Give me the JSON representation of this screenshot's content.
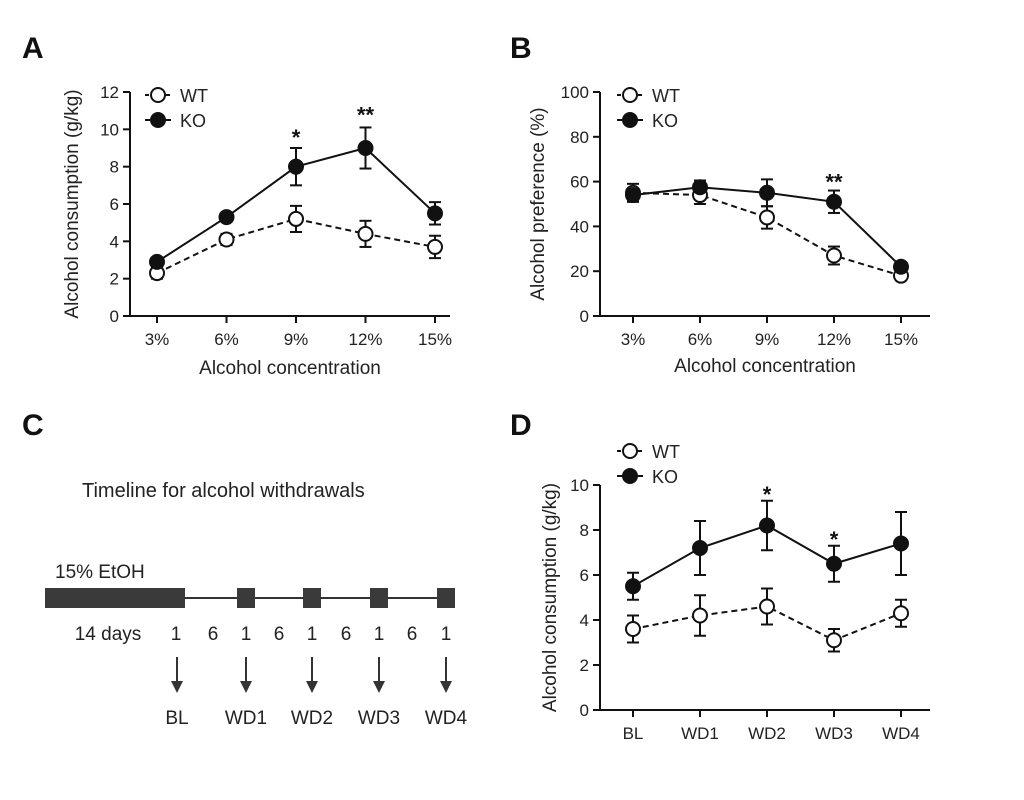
{
  "chart_data": [
    {
      "panel": "A",
      "type": "line",
      "categories": [
        "3%",
        "6%",
        "9%",
        "12%",
        "15%"
      ],
      "xlabel": "Alcohol concentration",
      "ylabel": "Alcohol consumption (g/kg)",
      "ylim": [
        0,
        12
      ],
      "yticks": [
        0,
        2,
        4,
        6,
        8,
        10,
        12
      ],
      "legend_position": "top-left",
      "series": [
        {
          "name": "WT",
          "marker": "open-circle",
          "line": "dashed",
          "values": [
            2.3,
            4.1,
            5.2,
            4.4,
            3.7
          ],
          "errors": [
            0.3,
            0.3,
            0.7,
            0.7,
            0.6
          ]
        },
        {
          "name": "KO",
          "marker": "filled-circle",
          "line": "solid",
          "values": [
            2.9,
            5.3,
            8.0,
            9.0,
            5.5
          ],
          "errors": [
            0.2,
            0.2,
            1.0,
            1.1,
            0.6
          ]
        }
      ],
      "annotations": [
        {
          "category": "9%",
          "text": "*",
          "y": 9.6
        },
        {
          "category": "12%",
          "text": "**",
          "y": 10.8
        }
      ]
    },
    {
      "panel": "B",
      "type": "line",
      "categories": [
        "3%",
        "6%",
        "9%",
        "12%",
        "15%"
      ],
      "xlabel": "Alcohol concentration",
      "ylabel": "Alcohol preference (%)",
      "ylim": [
        0,
        100
      ],
      "yticks": [
        0,
        20,
        40,
        60,
        80,
        100
      ],
      "legend_position": "top-left",
      "series": [
        {
          "name": "WT",
          "marker": "open-circle",
          "line": "dashed",
          "values": [
            55,
            54,
            44,
            27,
            18
          ],
          "errors": [
            4,
            4,
            5,
            4,
            2
          ]
        },
        {
          "name": "KO",
          "marker": "filled-circle",
          "line": "solid",
          "values": [
            54,
            57.5,
            55,
            51,
            22
          ],
          "errors": [
            3,
            3,
            6,
            5,
            2
          ]
        }
      ],
      "annotations": [
        {
          "category": "12%",
          "text": "**",
          "y": 60
        }
      ]
    },
    {
      "panel": "D",
      "type": "line",
      "categories": [
        "BL",
        "WD1",
        "WD2",
        "WD3",
        "WD4"
      ],
      "xlabel": "",
      "ylabel": "Alcohol consumption (g/kg)",
      "ylim": [
        0,
        10
      ],
      "yticks": [
        0,
        2,
        4,
        6,
        8,
        10
      ],
      "legend_position": "top-left",
      "series": [
        {
          "name": "WT",
          "marker": "open-circle",
          "line": "dashed",
          "values": [
            3.6,
            4.2,
            4.6,
            3.1,
            4.3
          ],
          "errors": [
            0.6,
            0.9,
            0.8,
            0.5,
            0.6
          ]
        },
        {
          "name": "KO",
          "marker": "filled-circle",
          "line": "solid",
          "values": [
            5.5,
            7.2,
            8.2,
            6.5,
            7.4
          ],
          "errors": [
            0.6,
            1.2,
            1.1,
            0.8,
            1.4
          ]
        }
      ],
      "annotations": [
        {
          "category": "WD2",
          "text": "*",
          "y": 9.6
        },
        {
          "category": "WD3",
          "text": "*",
          "y": 7.6
        }
      ]
    }
  ],
  "panels": {
    "a_letter": "A",
    "b_letter": "B",
    "c_letter": "C",
    "d_letter": "D"
  },
  "timeline": {
    "title": "Timeline for alcohol withdrawals",
    "bar_label": "15% EtOH",
    "day_labels": [
      "14 days",
      "1",
      "6",
      "1",
      "6",
      "1",
      "6",
      "1",
      "6",
      "1"
    ],
    "timepoints": [
      "BL",
      "WD1",
      "WD2",
      "WD3",
      "WD4"
    ]
  },
  "colors": {
    "ink": "#111111",
    "timeline_block": "#3a3a3a",
    "background": "#ffffff"
  }
}
